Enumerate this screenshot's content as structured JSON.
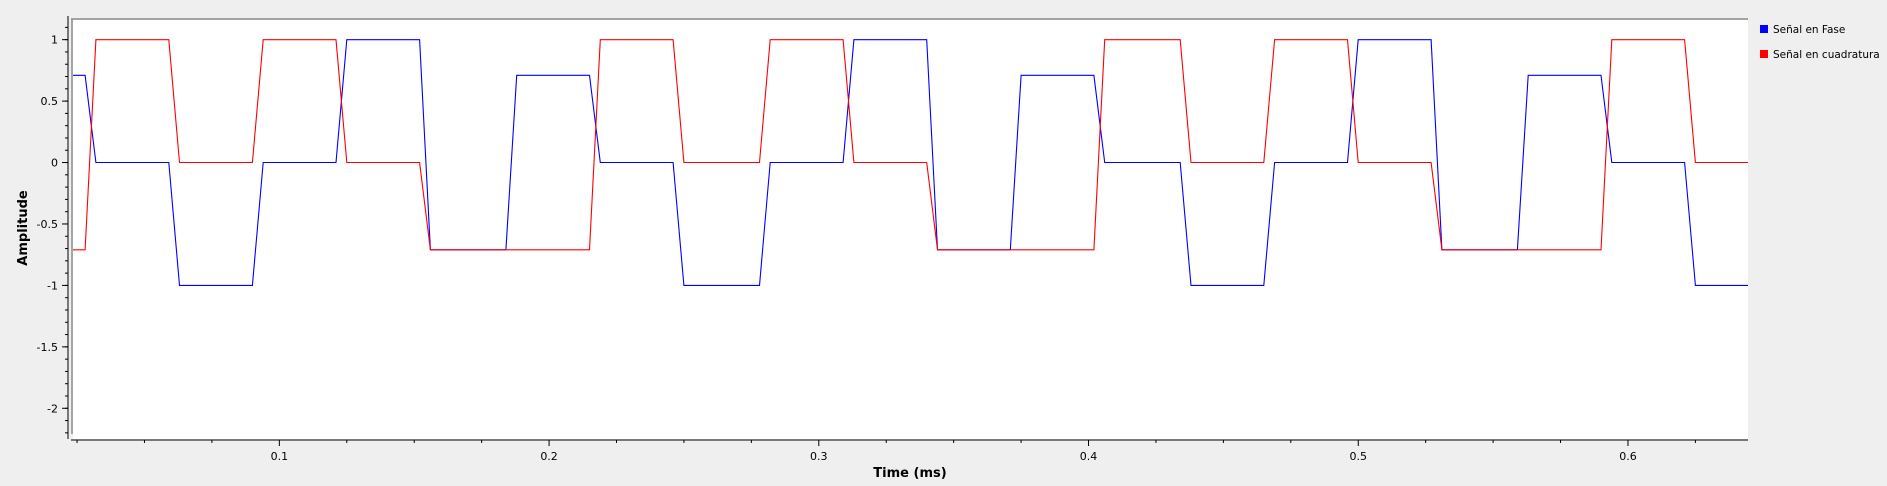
{
  "chart_data": {
    "type": "line",
    "xlabel": "Time (ms)",
    "ylabel": "Amplitude",
    "xlim": [
      0.0235,
      0.6445
    ],
    "ylim": [
      -2.25,
      1.16
    ],
    "x_ticks": [
      0.1,
      0.2,
      0.3,
      0.4,
      0.5,
      0.6
    ],
    "x_tick_labels": [
      "0.1",
      "0.2",
      "0.3",
      "0.4",
      "0.5",
      "0.6"
    ],
    "y_ticks": [
      1,
      0.5,
      0,
      -0.5,
      -1,
      -1.5,
      -2
    ],
    "y_tick_labels": [
      "1",
      "0.5",
      "0",
      "-0.5",
      "-1",
      "-1.5",
      "-2"
    ],
    "grid": false,
    "legend_position": "right",
    "series": [
      {
        "name": "Señal en Fase",
        "color": "#0000ff",
        "x": [
          0.0235,
          0.028,
          0.032,
          0.059,
          0.063,
          0.09,
          0.094,
          0.121,
          0.125,
          0.152,
          0.156,
          0.184,
          0.188,
          0.215,
          0.219,
          0.246,
          0.25,
          0.278,
          0.282,
          0.309,
          0.313,
          0.34,
          0.344,
          0.371,
          0.375,
          0.402,
          0.406,
          0.434,
          0.438,
          0.465,
          0.469,
          0.496,
          0.5,
          0.527,
          0.531,
          0.559,
          0.563,
          0.59,
          0.594,
          0.621,
          0.625,
          0.6445
        ],
        "y": [
          0.71,
          0.71,
          0,
          0,
          -1,
          -1,
          0,
          0,
          1,
          1,
          -0.71,
          -0.71,
          0.71,
          0.71,
          0,
          0,
          -1,
          -1,
          0,
          0,
          1,
          1,
          -0.71,
          -0.71,
          0.71,
          0.71,
          0,
          0,
          -1,
          -1,
          0,
          0,
          1,
          1,
          -0.71,
          -0.71,
          0.71,
          0.71,
          0,
          0,
          -1,
          -1
        ]
      },
      {
        "name": "Señal en cuadratura",
        "color": "#ff0000",
        "x": [
          0.0235,
          0.028,
          0.032,
          0.059,
          0.063,
          0.09,
          0.094,
          0.121,
          0.125,
          0.152,
          0.156,
          0.184,
          0.188,
          0.215,
          0.219,
          0.246,
          0.25,
          0.278,
          0.282,
          0.309,
          0.313,
          0.34,
          0.344,
          0.371,
          0.375,
          0.402,
          0.406,
          0.434,
          0.438,
          0.465,
          0.469,
          0.496,
          0.5,
          0.527,
          0.531,
          0.559,
          0.563,
          0.59,
          0.594,
          0.621,
          0.625,
          0.6445
        ],
        "y": [
          -0.71,
          -0.71,
          1,
          1,
          0,
          0,
          1,
          1,
          0,
          0,
          -0.71,
          -0.71,
          -0.71,
          -0.71,
          1,
          1,
          0,
          0,
          1,
          1,
          0,
          0,
          -0.71,
          -0.71,
          -0.71,
          -0.71,
          1,
          1,
          0,
          0,
          1,
          1,
          0,
          0,
          -0.71,
          -0.71,
          -0.71,
          -0.71,
          1,
          1,
          0,
          0
        ]
      }
    ]
  }
}
